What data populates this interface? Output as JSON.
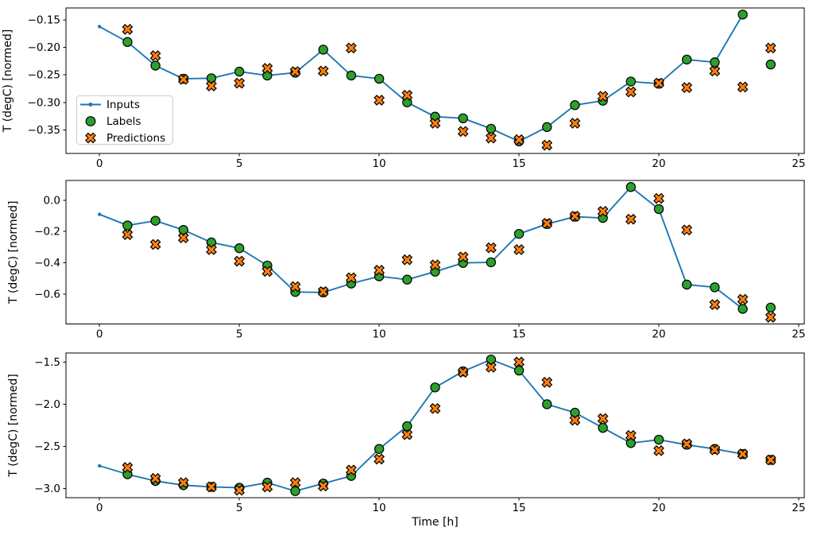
{
  "figure": {
    "background": "#ffffff",
    "xlabel": "Time [h]",
    "xlim": [
      -1.2,
      25.2
    ],
    "x_tick_values": [
      0,
      5,
      10,
      15,
      20,
      25
    ],
    "x_tick_labels": [
      "0",
      "5",
      "10",
      "15",
      "20",
      "25"
    ],
    "grid": false,
    "colors": {
      "inputs": "#1f77b4",
      "labels": "#2ca02c",
      "predictions": "#ff7f0e",
      "marker_edge": "#000000",
      "axis": "#000000",
      "legend_border": "#cccccc",
      "legend_bg": "#ffffff"
    },
    "legend": {
      "position": "upper-left-of-first-subplot",
      "items": [
        {
          "label": "Inputs",
          "marker": "line-dot",
          "color": "#1f77b4"
        },
        {
          "label": "Labels",
          "marker": "circle",
          "color": "#2ca02c"
        },
        {
          "label": "Predictions",
          "marker": "x",
          "color": "#ff7f0e"
        }
      ]
    }
  },
  "chart_data": [
    {
      "type": "line",
      "title": "",
      "xlabel": "",
      "ylabel": "T (degC) [normed]",
      "ylim": [
        -0.393,
        -0.128
      ],
      "y_tick_values": [
        -0.15,
        -0.2,
        -0.25,
        -0.3,
        -0.35
      ],
      "y_tick_labels": [
        "−0.15",
        "−0.20",
        "−0.25",
        "−0.30",
        "−0.35"
      ],
      "series": [
        {
          "name": "Inputs",
          "style": "line-dot",
          "x": [
            0,
            1,
            2,
            3,
            4,
            5,
            6,
            7,
            8,
            9,
            10,
            11,
            12,
            13,
            14,
            15,
            16,
            17,
            18,
            19,
            20,
            21,
            22,
            23
          ],
          "y": [
            -0.162,
            -0.19,
            -0.233,
            -0.257,
            -0.256,
            -0.244,
            -0.251,
            -0.246,
            -0.204,
            -0.251,
            -0.257,
            -0.3,
            -0.326,
            -0.329,
            -0.348,
            -0.371,
            -0.345,
            -0.305,
            -0.297,
            -0.262,
            -0.266,
            -0.222,
            -0.227,
            -0.14
          ]
        },
        {
          "name": "Labels",
          "style": "scatter-circle",
          "x": [
            1,
            2,
            3,
            4,
            5,
            6,
            7,
            8,
            9,
            10,
            11,
            12,
            13,
            14,
            15,
            16,
            17,
            18,
            19,
            20,
            21,
            22,
            23,
            24
          ],
          "y": [
            -0.19,
            -0.233,
            -0.257,
            -0.256,
            -0.244,
            -0.251,
            -0.246,
            -0.204,
            -0.251,
            -0.257,
            -0.3,
            -0.326,
            -0.329,
            -0.348,
            -0.371,
            -0.345,
            -0.305,
            -0.297,
            -0.262,
            -0.266,
            -0.222,
            -0.227,
            -0.14,
            -0.231
          ]
        },
        {
          "name": "Predictions",
          "style": "scatter-x",
          "x": [
            1,
            2,
            3,
            4,
            5,
            6,
            7,
            8,
            9,
            10,
            11,
            12,
            13,
            14,
            15,
            16,
            17,
            18,
            19,
            20,
            21,
            22,
            23,
            24
          ],
          "y": [
            -0.167,
            -0.215,
            -0.258,
            -0.27,
            -0.265,
            -0.238,
            -0.244,
            -0.243,
            -0.201,
            -0.296,
            -0.287,
            -0.338,
            -0.353,
            -0.365,
            -0.368,
            -0.378,
            -0.338,
            -0.289,
            -0.281,
            -0.265,
            -0.273,
            -0.243,
            -0.272,
            -0.201
          ]
        }
      ]
    },
    {
      "type": "line",
      "title": "",
      "xlabel": "",
      "ylabel": "T (degC) [normed]",
      "ylim": [
        -0.792,
        0.127
      ],
      "y_tick_values": [
        0.0,
        -0.2,
        -0.4,
        -0.6
      ],
      "y_tick_labels": [
        "0.0",
        "−0.2",
        "−0.4",
        "−0.6"
      ],
      "series": [
        {
          "name": "Inputs",
          "style": "line-dot",
          "x": [
            0,
            1,
            2,
            3,
            4,
            5,
            6,
            7,
            8,
            9,
            10,
            11,
            12,
            13,
            14,
            15,
            16,
            17,
            18,
            19,
            20,
            21,
            22,
            23
          ],
          "y": [
            -0.09,
            -0.161,
            -0.131,
            -0.19,
            -0.27,
            -0.307,
            -0.418,
            -0.587,
            -0.59,
            -0.533,
            -0.487,
            -0.508,
            -0.457,
            -0.401,
            -0.397,
            -0.215,
            -0.152,
            -0.105,
            -0.113,
            0.085,
            -0.056,
            -0.54,
            -0.557,
            -0.695
          ]
        },
        {
          "name": "Labels",
          "style": "scatter-circle",
          "x": [
            1,
            2,
            3,
            4,
            5,
            6,
            7,
            8,
            9,
            10,
            11,
            12,
            13,
            14,
            15,
            16,
            17,
            18,
            19,
            20,
            21,
            22,
            23,
            24
          ],
          "y": [
            -0.161,
            -0.131,
            -0.19,
            -0.27,
            -0.307,
            -0.418,
            -0.587,
            -0.59,
            -0.533,
            -0.487,
            -0.508,
            -0.457,
            -0.401,
            -0.397,
            -0.215,
            -0.152,
            -0.105,
            -0.113,
            0.085,
            -0.056,
            -0.54,
            -0.557,
            -0.695,
            -0.687
          ]
        },
        {
          "name": "Predictions",
          "style": "scatter-x",
          "x": [
            1,
            2,
            3,
            4,
            5,
            6,
            7,
            8,
            9,
            10,
            11,
            12,
            13,
            14,
            15,
            16,
            17,
            18,
            19,
            20,
            21,
            22,
            23,
            24
          ],
          "y": [
            -0.22,
            -0.283,
            -0.24,
            -0.316,
            -0.39,
            -0.455,
            -0.553,
            -0.585,
            -0.496,
            -0.448,
            -0.381,
            -0.414,
            -0.363,
            -0.304,
            -0.316,
            -0.148,
            -0.102,
            -0.071,
            -0.121,
            0.012,
            -0.19,
            -0.668,
            -0.634,
            -0.749
          ]
        }
      ]
    },
    {
      "type": "line",
      "title": "",
      "xlabel": "Time [h]",
      "ylabel": "T (degC) [normed]",
      "ylim": [
        -3.108,
        -1.392
      ],
      "y_tick_values": [
        -1.5,
        -2.0,
        -2.5,
        -3.0
      ],
      "y_tick_labels": [
        "−1.5",
        "−2.0",
        "−2.5",
        "−3.0"
      ],
      "series": [
        {
          "name": "Inputs",
          "style": "line-dot",
          "x": [
            0,
            1,
            2,
            3,
            4,
            5,
            6,
            7,
            8,
            9,
            10,
            11,
            12,
            13,
            14,
            15,
            16,
            17,
            18,
            19,
            20,
            21,
            22,
            23
          ],
          "y": [
            -2.73,
            -2.83,
            -2.91,
            -2.96,
            -2.98,
            -2.99,
            -2.93,
            -3.03,
            -2.94,
            -2.85,
            -2.53,
            -2.26,
            -1.8,
            -1.61,
            -1.47,
            -1.6,
            -2.0,
            -2.1,
            -2.28,
            -2.46,
            -2.42,
            -2.48,
            -2.53,
            -2.59
          ]
        },
        {
          "name": "Labels",
          "style": "scatter-circle",
          "x": [
            1,
            2,
            3,
            4,
            5,
            6,
            7,
            8,
            9,
            10,
            11,
            12,
            13,
            14,
            15,
            16,
            17,
            18,
            19,
            20,
            21,
            22,
            23,
            24
          ],
          "y": [
            -2.83,
            -2.91,
            -2.96,
            -2.98,
            -2.99,
            -2.93,
            -3.03,
            -2.94,
            -2.85,
            -2.53,
            -2.26,
            -1.8,
            -1.61,
            -1.47,
            -1.6,
            -2.0,
            -2.1,
            -2.28,
            -2.46,
            -2.42,
            -2.48,
            -2.53,
            -2.59,
            -2.66
          ]
        },
        {
          "name": "Predictions",
          "style": "scatter-x",
          "x": [
            1,
            2,
            3,
            4,
            5,
            6,
            7,
            8,
            9,
            10,
            11,
            12,
            13,
            14,
            15,
            16,
            17,
            18,
            19,
            20,
            21,
            22,
            23,
            24
          ],
          "y": [
            -2.75,
            -2.88,
            -2.93,
            -2.98,
            -3.02,
            -2.98,
            -2.93,
            -2.97,
            -2.78,
            -2.65,
            -2.36,
            -2.05,
            -1.62,
            -1.56,
            -1.5,
            -1.74,
            -2.19,
            -2.17,
            -2.37,
            -2.55,
            -2.47,
            -2.54,
            -2.59,
            -2.66
          ]
        }
      ]
    }
  ]
}
